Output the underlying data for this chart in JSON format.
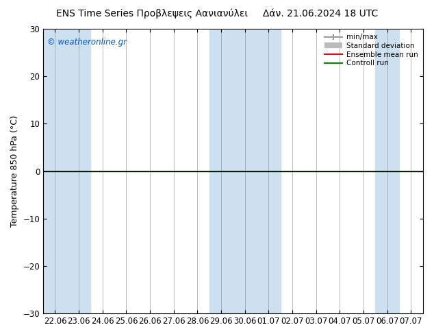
{
  "title_center": "ENS Time Series Προβλεψεις Αανιανύλει     Δάν. 21.06.2024 18 UTC",
  "ylabel": "Temperature 850 hPa (°C)",
  "watermark": "© weatheronline.gr",
  "ylim": [
    -30,
    30
  ],
  "yticks": [
    -30,
    -20,
    -10,
    0,
    10,
    20,
    30
  ],
  "xtick_labels": [
    "22.06",
    "23.06",
    "24.06",
    "25.06",
    "26.06",
    "27.06",
    "28.06",
    "29.06",
    "30.06",
    "01.07",
    "02.07",
    "03.07",
    "04.07",
    "05.07",
    "06.07",
    "07.07"
  ],
  "n_xticks": 16,
  "shaded_bands_indices": [
    0,
    1,
    7,
    8,
    9,
    14
  ],
  "band_color": "#cce0f0",
  "bg_color": "#ffffff",
  "plot_bg_color": "#ffffff",
  "zero_line_color": "#000000",
  "green_line_color": "#008800",
  "legend_entries": [
    "min/max",
    "Standard deviation",
    "Ensemble mean run",
    "Controll run"
  ],
  "title_fontsize": 10,
  "axis_fontsize": 9,
  "tick_fontsize": 8.5
}
